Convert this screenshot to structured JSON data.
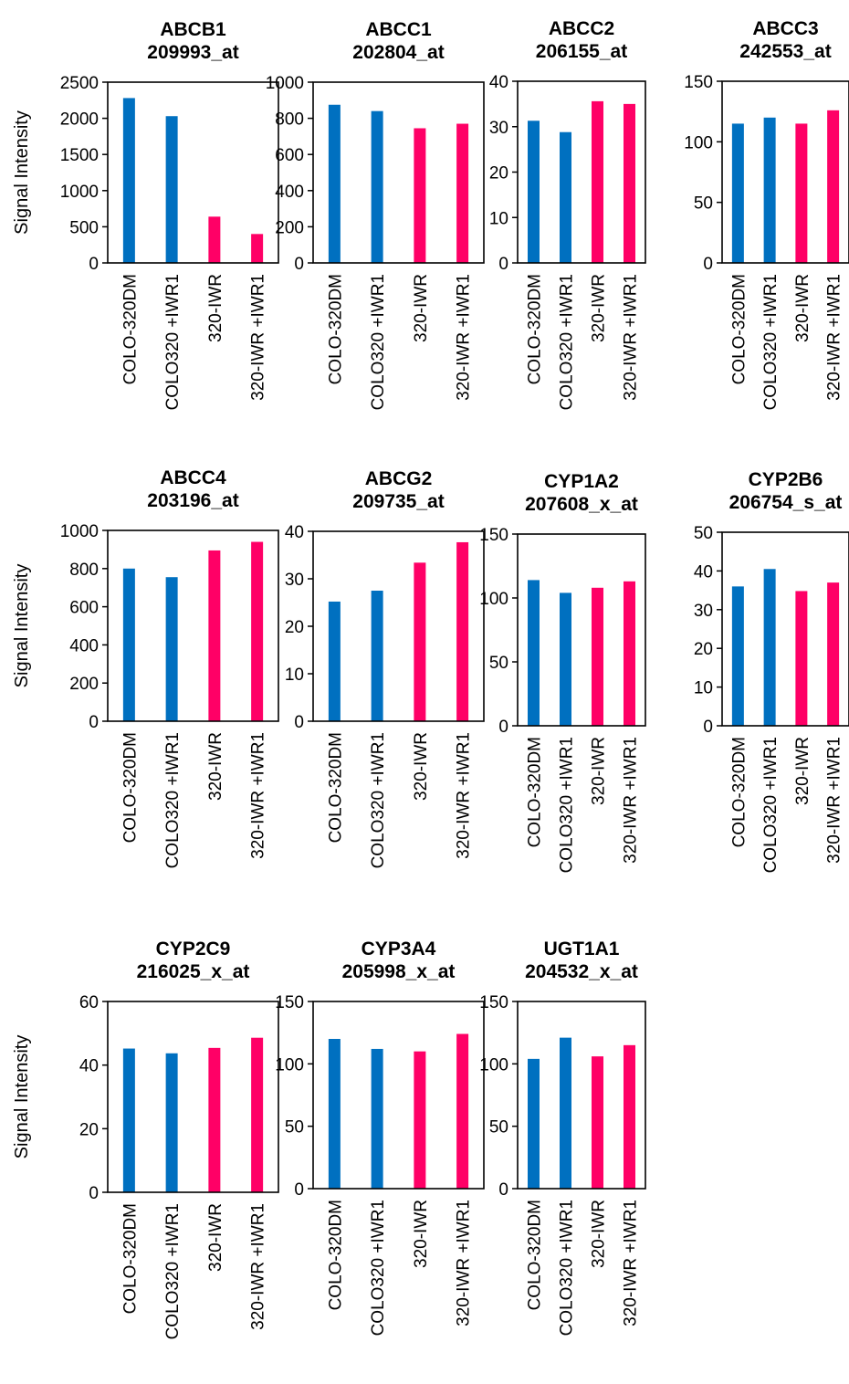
{
  "colors": {
    "blue": "#0070C0",
    "pink": "#FF0066"
  },
  "categories": [
    "COLO-320DM",
    "COLO320 +IWR1",
    "320-IWR",
    "320-IWR +IWR1"
  ],
  "bar_colors": [
    "blue",
    "blue",
    "pink",
    "pink"
  ],
  "ylabel": "Signal Intensity",
  "chart_data": [
    {
      "type": "bar",
      "title_gene": "ABCB1",
      "title_probe": "209993_at",
      "ylabel": "Signal Intensity",
      "categories": [
        "COLO-320DM",
        "COLO320 +IWR1",
        "320-IWR",
        "320-IWR +IWR1"
      ],
      "values": [
        2280,
        2030,
        640,
        400
      ],
      "ylim": [
        0,
        2500
      ],
      "yticks": [
        0,
        500,
        1000,
        1500,
        2000,
        2500
      ]
    },
    {
      "type": "bar",
      "title_gene": "ABCC1",
      "title_probe": "202804_at",
      "ylabel": "",
      "categories": [
        "COLO-320DM",
        "COLO320 +IWR1",
        "320-IWR",
        "320-IWR +IWR1"
      ],
      "values": [
        875,
        840,
        745,
        770
      ],
      "ylim": [
        0,
        1000
      ],
      "yticks": [
        0,
        200,
        400,
        600,
        800,
        1000
      ]
    },
    {
      "type": "bar",
      "title_gene": "ABCC2",
      "title_probe": "206155_at",
      "ylabel": "",
      "categories": [
        "COLO-320DM",
        "COLO320 +IWR1",
        "320-IWR",
        "320-IWR +IWR1"
      ],
      "values": [
        31.3,
        28.8,
        35.6,
        35.0
      ],
      "ylim": [
        0,
        40
      ],
      "yticks": [
        0,
        10,
        20,
        30,
        40
      ]
    },
    {
      "type": "bar",
      "title_gene": "ABCC3",
      "title_probe": "242553_at",
      "ylabel": "",
      "categories": [
        "COLO-320DM",
        "COLO320 +IWR1",
        "320-IWR",
        "320-IWR +IWR1"
      ],
      "values": [
        115,
        120,
        115,
        126
      ],
      "ylim": [
        0,
        150
      ],
      "yticks": [
        0,
        50,
        100,
        150
      ]
    },
    {
      "type": "bar",
      "title_gene": "ABCC4",
      "title_probe": "203196_at",
      "ylabel": "Signal Intensity",
      "categories": [
        "COLO-320DM",
        "COLO320 +IWR1",
        "320-IWR",
        "320-IWR +IWR1"
      ],
      "values": [
        800,
        755,
        895,
        940
      ],
      "ylim": [
        0,
        1000
      ],
      "yticks": [
        0,
        200,
        400,
        600,
        800,
        1000
      ]
    },
    {
      "type": "bar",
      "title_gene": "ABCG2",
      "title_probe": "209735_at",
      "ylabel": "",
      "categories": [
        "COLO-320DM",
        "COLO320 +IWR1",
        "320-IWR",
        "320-IWR +IWR1"
      ],
      "values": [
        25.2,
        27.5,
        33.4,
        37.7
      ],
      "ylim": [
        0,
        40
      ],
      "yticks": [
        0,
        10,
        20,
        30,
        40
      ]
    },
    {
      "type": "bar",
      "title_gene": "CYP1A2",
      "title_probe": "207608_x_at",
      "ylabel": "",
      "categories": [
        "COLO-320DM",
        "COLO320 +IWR1",
        "320-IWR",
        "320-IWR +IWR1"
      ],
      "values": [
        114,
        104,
        108,
        113
      ],
      "ylim": [
        0,
        150
      ],
      "yticks": [
        0,
        50,
        100,
        150
      ]
    },
    {
      "type": "bar",
      "title_gene": "CYP2B6",
      "title_probe": "206754_s_at",
      "ylabel": "",
      "categories": [
        "COLO-320DM",
        "COLO320 +IWR1",
        "320-IWR",
        "320-IWR +IWR1"
      ],
      "values": [
        36.0,
        40.5,
        34.8,
        37.0
      ],
      "ylim": [
        0,
        50
      ],
      "yticks": [
        0,
        10,
        20,
        30,
        40,
        50
      ]
    },
    {
      "type": "bar",
      "title_gene": "CYP2C9",
      "title_probe": "216025_x_at",
      "ylabel": "Signal Intensity",
      "categories": [
        "COLO-320DM",
        "COLO320 +IWR1",
        "320-IWR",
        "320-IWR +IWR1"
      ],
      "values": [
        45.2,
        43.7,
        45.4,
        48.6
      ],
      "ylim": [
        0,
        60
      ],
      "yticks": [
        0,
        20,
        40,
        60
      ]
    },
    {
      "type": "bar",
      "title_gene": "CYP3A4",
      "title_probe": "205998_x_at",
      "ylabel": "",
      "categories": [
        "COLO-320DM",
        "COLO320 +IWR1",
        "320-IWR",
        "320-IWR +IWR1"
      ],
      "values": [
        120,
        112,
        110,
        124
      ],
      "ylim": [
        0,
        150
      ],
      "yticks": [
        0,
        50,
        100,
        150
      ]
    },
    {
      "type": "bar",
      "title_gene": "UGT1A1",
      "title_probe": "204532_x_at",
      "ylabel": "",
      "categories": [
        "COLO-320DM",
        "COLO320 +IWR1",
        "320-IWR",
        "320-IWR +IWR1"
      ],
      "values": [
        104,
        121,
        106,
        115
      ],
      "ylim": [
        0,
        150
      ],
      "yticks": [
        0,
        50,
        100,
        150
      ]
    }
  ]
}
